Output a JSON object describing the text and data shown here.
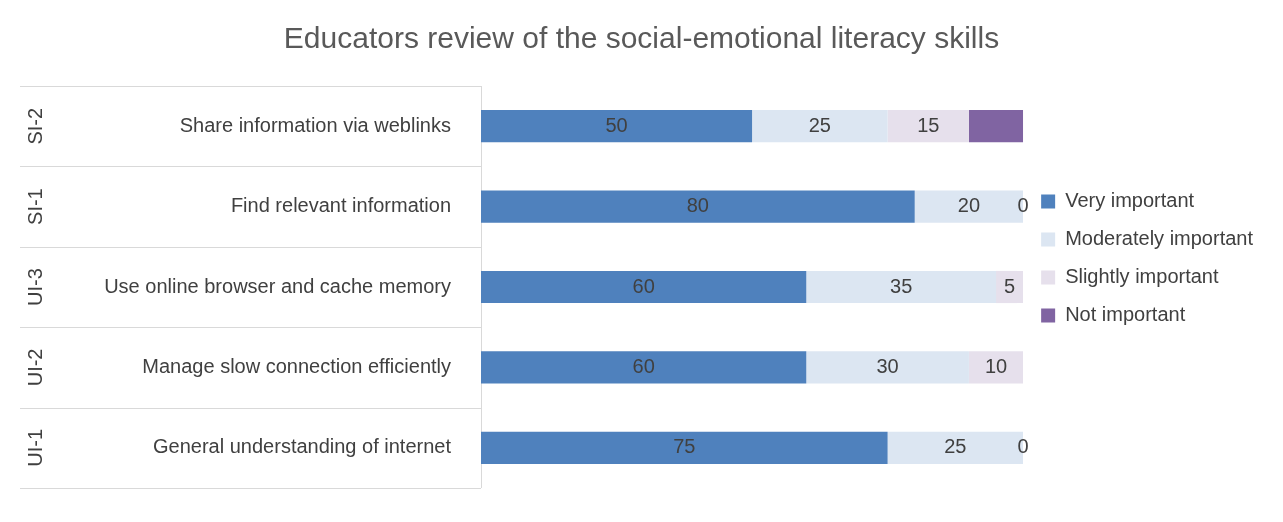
{
  "chart_data": {
    "type": "bar",
    "orientation": "horizontal",
    "stacked": true,
    "title": "Educators review of the social-emotional literacy skills",
    "categories": [
      "Share information via weblinks",
      "Find relevant information",
      "Use online browser and cache memory",
      "Manage slow connection efficiently",
      "General understanding of internet"
    ],
    "tick_labels": "y",
    "legend": "right",
    "annotations": [
      "SI-2",
      "SI-1",
      "UI-3",
      "UI-2",
      "UI-1"
    ],
    "series": [
      {
        "name": "Very important",
        "color": "#4f81bd",
        "values": [
          50,
          80,
          60,
          60,
          75
        ],
        "value_labels": [
          "50",
          "80",
          "60",
          "60",
          "75"
        ]
      },
      {
        "name": "Moderately important",
        "color": "#dce6f2",
        "values": [
          25,
          20,
          35,
          30,
          25
        ],
        "value_labels": [
          "25",
          "20",
          "35",
          "30",
          "25"
        ]
      },
      {
        "name": "Slightly important",
        "color": "#e6e0ec",
        "values": [
          15,
          0,
          5,
          10,
          0
        ],
        "value_labels": [
          "15",
          "0",
          "5",
          "10",
          "0"
        ]
      },
      {
        "name": "Not important",
        "color": "#8064a2",
        "values": [
          10,
          0,
          0,
          0,
          0
        ],
        "value_labels": [
          null,
          null,
          null,
          null,
          null
        ]
      }
    ]
  }
}
